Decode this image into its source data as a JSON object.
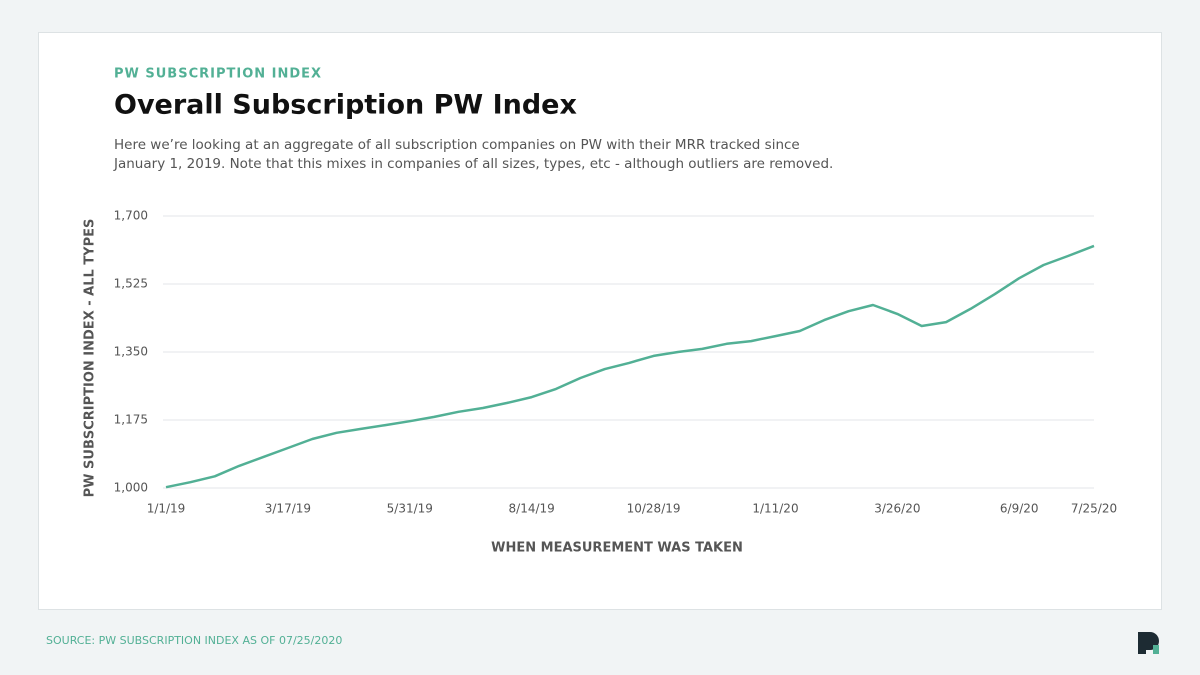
{
  "chart_data": {
    "type": "line",
    "kicker": "PW SUBSCRIPTION INDEX",
    "title": "Overall Subscription PW Index",
    "description": [
      "Here we’re looking at an aggregate of all subscription companies on PW with their MRR tracked since",
      "January 1, 2019. Note that this mixes in companies of all sizes, types, etc - although outliers are removed."
    ],
    "x_label": "WHEN MEASUREMENT WAS TAKEN",
    "y_label": "PW SUBSCRIPTION INDEX - ALL TYPES",
    "source": "SOURCE: PW SUBSCRIPTION INDEX AS OF 07/25/2020",
    "x": [
      "1/1/19",
      "1/16/19",
      "1/31/19",
      "2/15/19",
      "3/2/19",
      "3/17/19",
      "4/1/19",
      "4/16/19",
      "5/1/19",
      "5/16/19",
      "5/31/19",
      "6/15/19",
      "6/30/19",
      "7/15/19",
      "7/30/19",
      "8/14/19",
      "8/29/19",
      "9/13/19",
      "9/28/19",
      "10/13/19",
      "10/28/19",
      "11/12/19",
      "11/27/19",
      "12/12/19",
      "12/27/19",
      "1/11/20",
      "1/26/20",
      "2/10/20",
      "2/25/20",
      "3/11/20",
      "3/26/20",
      "4/10/20",
      "4/25/20",
      "5/10/20",
      "5/25/20",
      "6/9/20",
      "6/24/20",
      "7/9/20",
      "7/25/20"
    ],
    "values": [
      1002,
      1015,
      1030,
      1057,
      1080,
      1103,
      1126,
      1142,
      1152,
      1162,
      1172,
      1183,
      1196,
      1206,
      1219,
      1234,
      1255,
      1283,
      1306,
      1322,
      1340,
      1350,
      1358,
      1371,
      1378,
      1391,
      1404,
      1432,
      1455,
      1471,
      1448,
      1417,
      1427,
      1461,
      1499,
      1540,
      1574,
      1597,
      1623
    ],
    "color": "#52b095",
    "xlim": [
      "1/1/19",
      "7/25/20"
    ],
    "xticks": [
      "1/1/19",
      "3/17/19",
      "5/31/19",
      "8/14/19",
      "10/28/19",
      "1/11/20",
      "3/26/20",
      "6/9/20",
      "7/25/20"
    ],
    "ylim": [
      1000,
      1700
    ],
    "yticks": [
      {
        "value": 1000,
        "label": "1,000"
      },
      {
        "value": 1175,
        "label": "1,175"
      },
      {
        "value": 1350,
        "label": "1,350"
      },
      {
        "value": 1525,
        "label": "1,525"
      },
      {
        "value": 1700,
        "label": "1,700"
      }
    ],
    "grid": true
  }
}
